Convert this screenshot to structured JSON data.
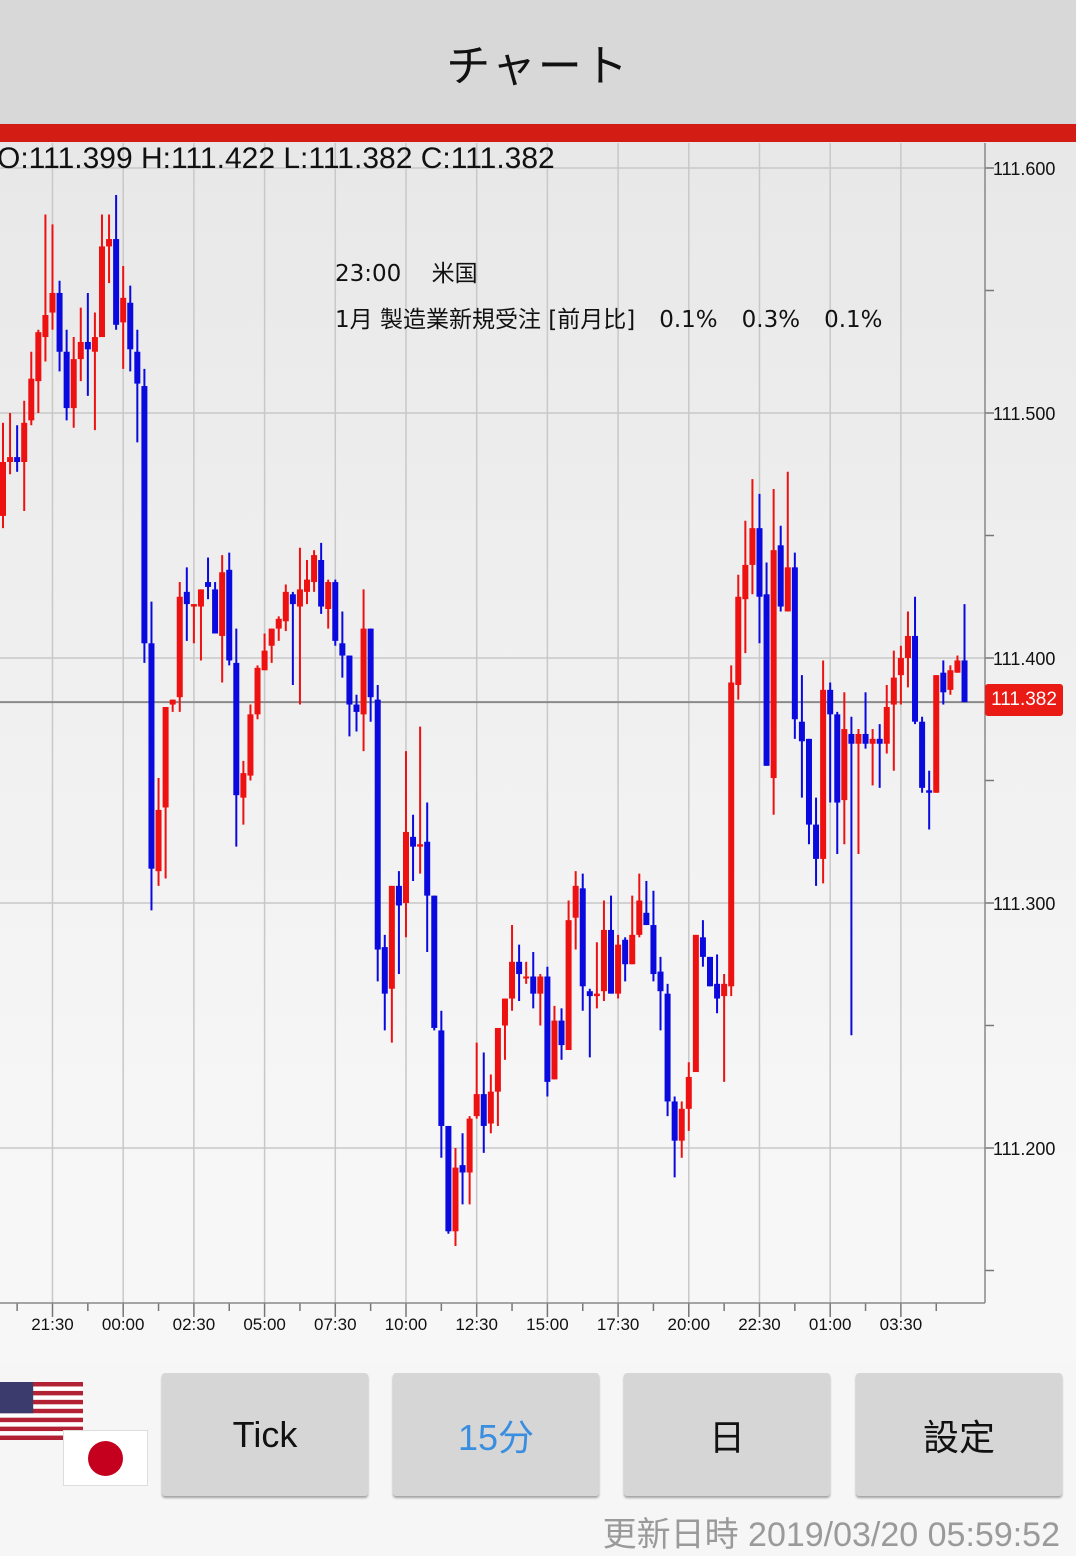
{
  "header": {
    "title": "チャート"
  },
  "colors": {
    "accent_bar": "#d21c14",
    "up_candle": "#ee1111",
    "down_candle": "#0a0adf",
    "active_button_text": "#3a8ee0",
    "price_tag": "#ea1b14"
  },
  "ohlc_readout": {
    "o_label": "O:",
    "o": "111.399",
    "h_label": "H:",
    "h": "111.422",
    "l_label": "L:",
    "l": "111.382",
    "c_label": "C:",
    "c": "111.382"
  },
  "event": {
    "time": "23:00",
    "country": "米国",
    "indicator": "1月 製造業新規受注 [前月比]",
    "values": [
      "0.1%",
      "0.3%",
      "0.1%"
    ]
  },
  "current_price": "111.382",
  "chart_data": {
    "type": "candlestick",
    "interval": "15分",
    "y_ticks": [
      "111.600",
      "111.500",
      "111.400",
      "111.300",
      "111.200"
    ],
    "ylim": [
      111.145,
      111.61
    ],
    "x_ticks": [
      "21:30",
      "00:00",
      "02:30",
      "05:00",
      "07:30",
      "10:00",
      "12:30",
      "15:00",
      "17:30",
      "20:00",
      "22:30",
      "01:00",
      "03:30"
    ],
    "grid": true,
    "candles_ohlc": [
      [
        111.458,
        111.496,
        111.453,
        111.48
      ],
      [
        111.48,
        111.5,
        111.475,
        111.482
      ],
      [
        111.482,
        111.495,
        111.476,
        111.48
      ],
      [
        111.48,
        111.505,
        111.46,
        111.496
      ],
      [
        111.497,
        111.525,
        111.495,
        111.514
      ],
      [
        111.513,
        111.534,
        111.5,
        111.533
      ],
      [
        111.531,
        111.581,
        111.521,
        111.54
      ],
      [
        111.541,
        111.577,
        111.534,
        111.549
      ],
      [
        111.549,
        111.554,
        111.517,
        111.525
      ],
      [
        111.525,
        111.534,
        111.497,
        111.502
      ],
      [
        111.502,
        111.531,
        111.494,
        111.522
      ],
      [
        111.522,
        111.543,
        111.513,
        111.529
      ],
      [
        111.529,
        111.549,
        111.507,
        111.526
      ],
      [
        111.525,
        111.541,
        111.493,
        111.531
      ],
      [
        111.531,
        111.581,
        111.531,
        111.568
      ],
      [
        111.568,
        111.581,
        111.553,
        111.571
      ],
      [
        111.571,
        111.589,
        111.534,
        111.536
      ],
      [
        111.537,
        111.56,
        111.518,
        111.547
      ],
      [
        111.545,
        111.552,
        111.517,
        111.526
      ],
      [
        111.525,
        111.534,
        111.488,
        111.512
      ],
      [
        111.511,
        111.518,
        111.398,
        111.406
      ],
      [
        111.406,
        111.423,
        111.297,
        111.314
      ],
      [
        111.313,
        111.351,
        111.307,
        111.338
      ],
      [
        111.339,
        111.38,
        111.31,
        111.38
      ],
      [
        111.381,
        111.383,
        111.378,
        111.383
      ],
      [
        111.384,
        111.431,
        111.378,
        111.425
      ],
      [
        111.427,
        111.437,
        111.407,
        111.422
      ],
      [
        111.421,
        111.422,
        111.406,
        111.422
      ],
      [
        111.421,
        111.428,
        111.399,
        111.428
      ],
      [
        111.431,
        111.441,
        111.424,
        111.429
      ],
      [
        111.428,
        111.431,
        111.41,
        111.41
      ],
      [
        111.409,
        111.442,
        111.39,
        111.435
      ],
      [
        111.436,
        111.443,
        111.397,
        111.399
      ],
      [
        111.398,
        111.412,
        111.323,
        111.344
      ],
      [
        111.343,
        111.358,
        111.332,
        111.353
      ],
      [
        111.352,
        111.381,
        111.35,
        111.377
      ],
      [
        111.377,
        111.397,
        111.375,
        111.396
      ],
      [
        111.395,
        111.41,
        111.395,
        111.403
      ],
      [
        111.405,
        111.412,
        111.398,
        111.412
      ],
      [
        111.412,
        111.417,
        111.407,
        111.416
      ],
      [
        111.415,
        111.43,
        111.411,
        111.427
      ],
      [
        111.426,
        111.427,
        111.389,
        111.422
      ],
      [
        111.421,
        111.445,
        111.381,
        111.428
      ],
      [
        111.427,
        111.44,
        111.422,
        111.432
      ],
      [
        111.431,
        111.444,
        111.427,
        111.442
      ],
      [
        111.44,
        111.447,
        111.418,
        111.421
      ],
      [
        111.42,
        111.432,
        111.412,
        111.431
      ],
      [
        111.431,
        111.432,
        111.405,
        111.407
      ],
      [
        111.406,
        111.419,
        111.392,
        111.401
      ],
      [
        111.401,
        111.401,
        111.368,
        111.381
      ],
      [
        111.381,
        111.385,
        111.37,
        111.378
      ],
      [
        111.377,
        111.428,
        111.362,
        111.412
      ],
      [
        111.412,
        111.412,
        111.374,
        111.384
      ],
      [
        111.383,
        111.389,
        111.268,
        111.281
      ],
      [
        111.282,
        111.287,
        111.248,
        111.263
      ],
      [
        111.265,
        111.307,
        111.243,
        111.307
      ],
      [
        111.307,
        111.313,
        111.271,
        111.299
      ],
      [
        111.3,
        111.362,
        111.286,
        111.329
      ],
      [
        111.327,
        111.336,
        111.309,
        111.323
      ],
      [
        111.323,
        111.372,
        111.312,
        111.324
      ],
      [
        111.325,
        111.341,
        111.28,
        111.303
      ],
      [
        111.303,
        111.303,
        111.248,
        111.249
      ],
      [
        111.248,
        111.256,
        111.196,
        111.209
      ],
      [
        111.209,
        111.209,
        111.165,
        111.166
      ],
      [
        111.166,
        111.2,
        111.16,
        111.192
      ],
      [
        111.193,
        111.206,
        111.177,
        111.19
      ],
      [
        111.19,
        111.213,
        111.177,
        111.212
      ],
      [
        111.213,
        111.243,
        111.212,
        111.222
      ],
      [
        111.222,
        111.239,
        111.198,
        111.209
      ],
      [
        111.21,
        111.23,
        111.206,
        111.223
      ],
      [
        111.223,
        111.249,
        111.209,
        111.249
      ],
      [
        111.25,
        111.261,
        111.236,
        111.261
      ],
      [
        111.261,
        111.291,
        111.256,
        111.276
      ],
      [
        111.276,
        111.283,
        111.26,
        111.271
      ],
      [
        111.27,
        111.276,
        111.267,
        111.27
      ],
      [
        111.27,
        111.28,
        111.257,
        111.263
      ],
      [
        111.263,
        111.271,
        111.25,
        111.27
      ],
      [
        111.27,
        111.274,
        111.221,
        111.227
      ],
      [
        111.228,
        111.258,
        111.228,
        111.252
      ],
      [
        111.252,
        111.257,
        111.236,
        111.242
      ],
      [
        111.24,
        111.301,
        111.24,
        111.293
      ],
      [
        111.294,
        111.313,
        111.281,
        111.307
      ],
      [
        111.306,
        111.312,
        111.256,
        111.266
      ],
      [
        111.264,
        111.265,
        111.237,
        111.262
      ],
      [
        111.262,
        111.284,
        111.257,
        111.263
      ],
      [
        111.264,
        111.301,
        111.26,
        111.289
      ],
      [
        111.289,
        111.303,
        111.263,
        111.263
      ],
      [
        111.263,
        111.287,
        111.261,
        111.283
      ],
      [
        111.285,
        111.286,
        111.268,
        111.275
      ],
      [
        111.275,
        111.303,
        111.275,
        111.287
      ],
      [
        111.287,
        111.312,
        111.286,
        111.301
      ],
      [
        111.296,
        111.309,
        111.291,
        111.291
      ],
      [
        111.291,
        111.305,
        111.268,
        111.271
      ],
      [
        111.272,
        111.278,
        111.248,
        111.264
      ],
      [
        111.263,
        111.267,
        111.213,
        111.219
      ],
      [
        111.219,
        111.221,
        111.188,
        111.203
      ],
      [
        111.203,
        111.219,
        111.196,
        111.216
      ],
      [
        111.216,
        111.235,
        111.207,
        111.229
      ],
      [
        111.231,
        111.287,
        111.231,
        111.287
      ],
      [
        111.286,
        111.293,
        111.274,
        111.278
      ],
      [
        111.278,
        111.278,
        111.266,
        111.266
      ],
      [
        111.267,
        111.279,
        111.255,
        111.261
      ],
      [
        111.262,
        111.271,
        111.227,
        111.267
      ],
      [
        111.266,
        111.397,
        111.262,
        111.39
      ],
      [
        111.389,
        111.434,
        111.383,
        111.425
      ],
      [
        111.424,
        111.456,
        111.402,
        111.438
      ],
      [
        111.438,
        111.473,
        111.426,
        111.453
      ],
      [
        111.453,
        111.467,
        111.406,
        111.425
      ],
      [
        111.426,
        111.439,
        111.356,
        111.356
      ],
      [
        111.351,
        111.469,
        111.336,
        111.444
      ],
      [
        111.446,
        111.454,
        111.419,
        111.421
      ],
      [
        111.419,
        111.476,
        111.419,
        111.437
      ],
      [
        111.437,
        111.443,
        111.367,
        111.375
      ],
      [
        111.374,
        111.393,
        111.343,
        111.366
      ],
      [
        111.367,
        111.367,
        111.324,
        111.332
      ],
      [
        111.332,
        111.343,
        111.307,
        111.318
      ],
      [
        111.318,
        111.399,
        111.308,
        111.387
      ],
      [
        111.387,
        111.39,
        111.341,
        111.377
      ],
      [
        111.377,
        111.378,
        111.32,
        111.341
      ],
      [
        111.342,
        111.386,
        111.324,
        111.371
      ],
      [
        111.369,
        111.376,
        111.246,
        111.365
      ],
      [
        111.365,
        111.371,
        111.32,
        111.369
      ],
      [
        111.369,
        111.386,
        111.363,
        111.365
      ],
      [
        111.365,
        111.371,
        111.348,
        111.367
      ],
      [
        111.367,
        111.373,
        111.347,
        111.365
      ],
      [
        111.365,
        111.389,
        111.361,
        111.38
      ],
      [
        111.381,
        111.403,
        111.354,
        111.392
      ],
      [
        111.393,
        111.405,
        111.381,
        111.4
      ],
      [
        111.4,
        111.419,
        111.388,
        111.409
      ],
      [
        111.409,
        111.425,
        111.373,
        111.374
      ],
      [
        111.374,
        111.376,
        111.345,
        111.347
      ],
      [
        111.346,
        111.354,
        111.33,
        111.345
      ],
      [
        111.345,
        111.393,
        111.345,
        111.393
      ],
      [
        111.394,
        111.399,
        111.381,
        111.386
      ],
      [
        111.387,
        111.397,
        111.385,
        111.395
      ],
      [
        111.394,
        111.401,
        111.394,
        111.399
      ],
      [
        111.399,
        111.422,
        111.382,
        111.382
      ]
    ]
  },
  "buttons": [
    {
      "label": "Tick",
      "active": false
    },
    {
      "label": "15分",
      "active": true
    },
    {
      "label": "日",
      "active": false
    },
    {
      "label": "設定",
      "active": false
    }
  ],
  "flags": {
    "primary": "us-flag",
    "secondary": "japan-flag"
  },
  "footer": {
    "updated_label": "更新日時",
    "updated_value": "2019/03/20 05:59:52"
  }
}
